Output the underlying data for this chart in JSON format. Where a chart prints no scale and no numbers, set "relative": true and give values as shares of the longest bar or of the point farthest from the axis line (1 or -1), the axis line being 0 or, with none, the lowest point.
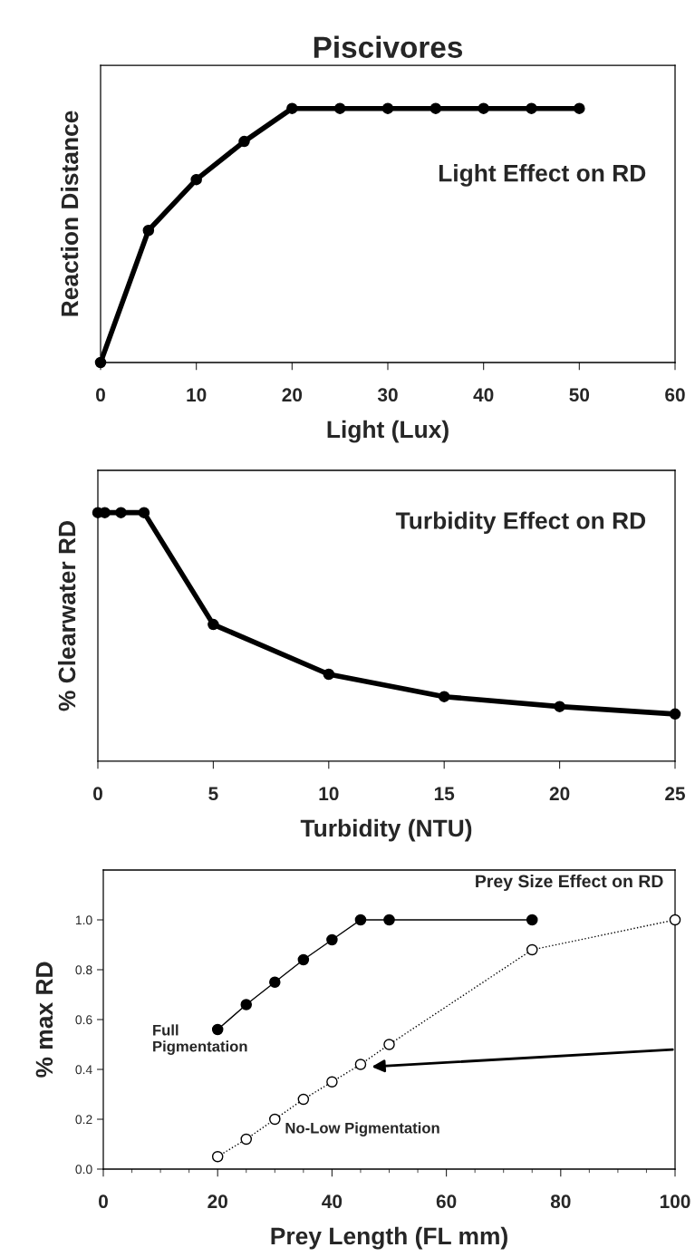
{
  "chart_data": [
    {
      "type": "line",
      "title": "Piscivores",
      "xlabel": "Light (Lux)",
      "ylabel": "Reaction Distance",
      "relative": true,
      "marker": "circle",
      "line_style": "solid",
      "annotations": [
        "Light Effect on RD"
      ],
      "xlim": [
        0,
        60
      ],
      "xticks": [
        0,
        10,
        20,
        30,
        40,
        50,
        60
      ],
      "series": [
        {
          "color": "#000000",
          "x": [
            0,
            5,
            10,
            15,
            20,
            25,
            30,
            35,
            40,
            45,
            50
          ],
          "values": [
            0,
            0.52,
            0.72,
            0.87,
            1,
            1,
            1,
            1,
            1,
            1,
            1
          ]
        }
      ]
    },
    {
      "type": "line",
      "xlabel": "Turbidity (NTU)",
      "ylabel": "% Clearwater RD",
      "relative": true,
      "marker": "circle",
      "line_style": "solid",
      "annotations": [
        "Turbidity Effect on RD"
      ],
      "xlim": [
        0,
        25
      ],
      "xticks": [
        0,
        5,
        10,
        15,
        20,
        25
      ],
      "series": [
        {
          "color": "#000000",
          "x": [
            0,
            0.3,
            1,
            2,
            5,
            10,
            15,
            20,
            25
          ],
          "values": [
            1,
            1,
            1,
            1,
            0.55,
            0.35,
            0.26,
            0.22,
            0.19
          ]
        }
      ]
    },
    {
      "type": "line",
      "xlabel": "Prey Length (FL mm)",
      "ylabel": "% max RD",
      "marker": "circle",
      "annotations": [
        "Prey Size Effect on RD"
      ],
      "xlim": [
        0,
        100
      ],
      "xticks": [
        0,
        {
          "value": 5,
          "label": null
        },
        {
          "value": 10,
          "label": null
        },
        {
          "value": 15,
          "label": null
        },
        20,
        {
          "value": 25,
          "label": null
        },
        {
          "value": 30,
          "label": null
        },
        {
          "value": 35,
          "label": null
        },
        40,
        {
          "value": 45,
          "label": null
        },
        {
          "value": 50,
          "label": null
        },
        {
          "value": 55,
          "label": null
        },
        60,
        {
          "value": 65,
          "label": null
        },
        {
          "value": 70,
          "label": null
        },
        {
          "value": 75,
          "label": null
        },
        80,
        {
          "value": 85,
          "label": null
        },
        {
          "value": 90,
          "label": null
        },
        {
          "value": 95,
          "label": null
        },
        100
      ],
      "ylim": [
        0,
        1.2
      ],
      "yticks": [
        {
          "value": 0,
          "label": "0.0"
        },
        {
          "value": 0.2,
          "label": "0.2"
        },
        {
          "value": 0.4,
          "label": "0.4"
        },
        {
          "value": 0.6,
          "label": "0.6"
        },
        {
          "value": 0.8,
          "label": "0.8"
        },
        {
          "value": 1.0,
          "label": "1.0"
        }
      ],
      "series": [
        {
          "name": "Full\nPigmentation",
          "color": "#000000",
          "line_style": "solid",
          "x": [
            20,
            25,
            30,
            35,
            40,
            45,
            50,
            75
          ],
          "values": [
            0.56,
            0.66,
            0.75,
            0.84,
            0.92,
            1.0,
            1.0,
            1.0
          ]
        },
        {
          "name": "No-Low Pigmentation",
          "color": "#000000",
          "line_style": "dotted",
          "x": [
            20,
            25,
            30,
            35,
            40,
            45,
            50,
            75,
            100
          ],
          "values": [
            0.05,
            0.12,
            0.2,
            0.28,
            0.35,
            0.42,
            0.5,
            0.88,
            1.0
          ]
        }
      ]
    }
  ]
}
